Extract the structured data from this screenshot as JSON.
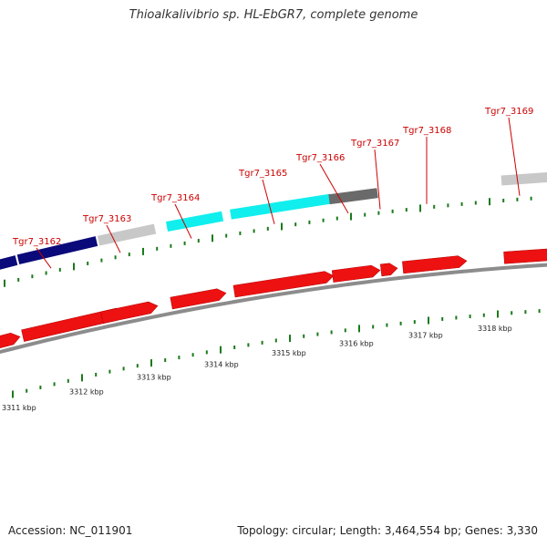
{
  "title": "Thioalkalivibrio sp. HL-EbGR7, complete genome",
  "accession": "Accession: NC_011901",
  "topology": "Topology: circular; Length: 3,464,554 bp; Genes: 3,330",
  "colors": {
    "backbone": "#8c8c8c",
    "cds": "#ee1111",
    "tick": "#1a7a1a",
    "label": "#cc0000",
    "navy": "#0a0a7a",
    "cyan": "#11eeee",
    "lightgray": "#c8c8c8",
    "darkgray": "#6a6a6a"
  },
  "scale_labels": [
    "3311 kbp",
    "3312 kbp",
    "3313 kbp",
    "3314 kbp",
    "3315 kbp",
    "3316 kbp",
    "3317 kbp",
    "3318 kbp"
  ],
  "gene_labels": [
    "Tgr7_3162",
    "Tgr7_3163",
    "Tgr7_3164",
    "Tgr7_3165",
    "Tgr7_3166",
    "Tgr7_3167",
    "Tgr7_3168",
    "Tgr7_3169"
  ]
}
